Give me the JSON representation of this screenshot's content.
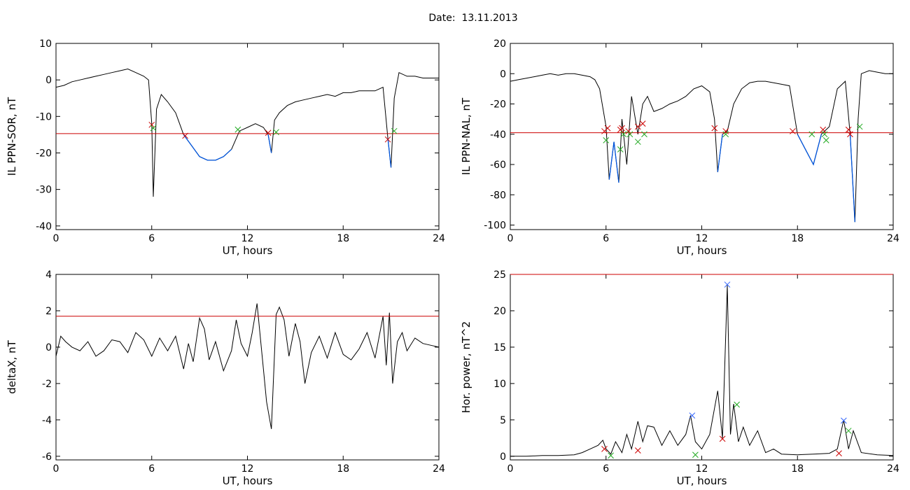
{
  "page": {
    "title": "Date:  13.11.2013"
  },
  "colors": {
    "trace": "#000000",
    "threshold": "#cc0000",
    "below_threshold": "#0055dd",
    "marker_start": "#cc0000",
    "marker_end": "#22aa22",
    "marker_peak": "#3366ff"
  },
  "chart_data": [
    {
      "type": "line",
      "xlabel": "UT, hours",
      "ylabel": "IL PPN-SOR, nT",
      "xlim": [
        0,
        24
      ],
      "ylim": [
        -41,
        10
      ],
      "xticks": [
        0,
        6,
        12,
        18,
        24
      ],
      "yticks": [
        -40,
        -30,
        -20,
        -10,
        0,
        10
      ],
      "threshold": -14.7,
      "grid": false,
      "x": [
        0,
        0.5,
        1,
        1.5,
        2,
        2.5,
        3,
        3.5,
        4,
        4.5,
        5,
        5.5,
        5.8,
        6,
        6.1,
        6.3,
        6.6,
        7,
        7.5,
        8,
        8.5,
        9,
        9.5,
        10,
        10.5,
        11,
        11.5,
        12,
        12.5,
        13,
        13.3,
        13.5,
        13.7,
        14,
        14.5,
        15,
        15.5,
        16,
        16.5,
        17,
        17.5,
        18,
        18.5,
        19,
        19.5,
        20,
        20.5,
        20.8,
        21,
        21.2,
        21.5,
        22,
        22.5,
        23,
        23.5,
        24
      ],
      "y": [
        -2,
        -1.5,
        -0.5,
        0,
        0.5,
        1,
        1.5,
        2,
        2.5,
        3,
        2,
        1,
        0,
        -12,
        -32,
        -8,
        -4,
        -6,
        -9,
        -15,
        -18,
        -21,
        -22,
        -22,
        -21,
        -19,
        -14,
        -13,
        -12,
        -13,
        -15,
        -20,
        -11,
        -9,
        -7,
        -6,
        -5.5,
        -5,
        -4.5,
        -4,
        -4.5,
        -3.5,
        -3.5,
        -3,
        -3,
        -3,
        -2,
        -16,
        -24,
        -5,
        2,
        1,
        1,
        0.5,
        0.5,
        0.5
      ],
      "markers": [
        {
          "x": 6.0,
          "y": -12.3,
          "kind": "start"
        },
        {
          "x": 6.1,
          "y": -13.2,
          "kind": "end"
        },
        {
          "x": 8.1,
          "y": -15.3,
          "kind": "start"
        },
        {
          "x": 11.4,
          "y": -13.6,
          "kind": "end"
        },
        {
          "x": 13.3,
          "y": -14.5,
          "kind": "start"
        },
        {
          "x": 13.8,
          "y": -14.3,
          "kind": "end"
        },
        {
          "x": 20.8,
          "y": -16.3,
          "kind": "start"
        },
        {
          "x": 21.2,
          "y": -14.0,
          "kind": "end"
        }
      ]
    },
    {
      "type": "line",
      "xlabel": "UT, hours",
      "ylabel": "IL PPN-NAL, nT",
      "xlim": [
        0,
        24
      ],
      "ylim": [
        -103,
        20
      ],
      "xticks": [
        0,
        6,
        12,
        18,
        24
      ],
      "yticks": [
        -100,
        -80,
        -60,
        -40,
        -20,
        0,
        20
      ],
      "threshold": -39,
      "grid": false,
      "x": [
        0,
        0.5,
        1,
        1.5,
        2,
        2.5,
        3,
        3.5,
        4,
        4.5,
        5,
        5.3,
        5.6,
        6,
        6.2,
        6.5,
        6.8,
        7,
        7.3,
        7.6,
        8,
        8.3,
        8.6,
        9,
        9.5,
        10,
        10.5,
        11,
        11.5,
        12,
        12.5,
        12.8,
        13,
        13.3,
        13.6,
        14,
        14.5,
        15,
        15.5,
        16,
        16.5,
        17,
        17.5,
        18,
        18.5,
        19,
        19.5,
        20,
        20.5,
        21,
        21.3,
        21.6,
        21.8,
        22,
        22.5,
        23,
        23.5,
        24
      ],
      "y": [
        -5,
        -4,
        -3,
        -2,
        -1,
        0,
        -1,
        0,
        0,
        -1,
        -2,
        -4,
        -10,
        -35,
        -70,
        -45,
        -72,
        -30,
        -60,
        -15,
        -40,
        -20,
        -15,
        -25,
        -23,
        -20,
        -18,
        -15,
        -10,
        -8,
        -12,
        -30,
        -65,
        -40,
        -38,
        -20,
        -10,
        -6,
        -5,
        -5,
        -6,
        -7,
        -8,
        -40,
        -50,
        -60,
        -40,
        -35,
        -10,
        -5,
        -40,
        -98,
        -30,
        0,
        2,
        1,
        0,
        0
      ],
      "markers": [
        {
          "x": 5.9,
          "y": -38,
          "kind": "start"
        },
        {
          "x": 6.1,
          "y": -36,
          "kind": "start"
        },
        {
          "x": 6.0,
          "y": -44,
          "kind": "end"
        },
        {
          "x": 6.9,
          "y": -37,
          "kind": "start"
        },
        {
          "x": 7.0,
          "y": -36,
          "kind": "start"
        },
        {
          "x": 6.9,
          "y": -50,
          "kind": "end"
        },
        {
          "x": 7.1,
          "y": -40,
          "kind": "end"
        },
        {
          "x": 7.4,
          "y": -38,
          "kind": "start"
        },
        {
          "x": 7.5,
          "y": -40,
          "kind": "end"
        },
        {
          "x": 8.0,
          "y": -35,
          "kind": "start"
        },
        {
          "x": 8.0,
          "y": -45,
          "kind": "end"
        },
        {
          "x": 8.3,
          "y": -33,
          "kind": "start"
        },
        {
          "x": 8.4,
          "y": -40,
          "kind": "end"
        },
        {
          "x": 12.8,
          "y": -36,
          "kind": "start"
        },
        {
          "x": 13.5,
          "y": -38,
          "kind": "start"
        },
        {
          "x": 13.5,
          "y": -40,
          "kind": "end"
        },
        {
          "x": 17.7,
          "y": -38,
          "kind": "start"
        },
        {
          "x": 18.9,
          "y": -40,
          "kind": "end"
        },
        {
          "x": 19.6,
          "y": -37,
          "kind": "start"
        },
        {
          "x": 19.7,
          "y": -40,
          "kind": "end"
        },
        {
          "x": 19.8,
          "y": -44,
          "kind": "end"
        },
        {
          "x": 21.2,
          "y": -37,
          "kind": "start"
        },
        {
          "x": 21.3,
          "y": -40,
          "kind": "start"
        },
        {
          "x": 21.9,
          "y": -35,
          "kind": "end"
        }
      ]
    },
    {
      "type": "line",
      "xlabel": "UT, hours",
      "ylabel": "deltaX, nT",
      "xlim": [
        0,
        24
      ],
      "ylim": [
        -6.2,
        4
      ],
      "xticks": [
        0,
        6,
        12,
        18,
        24
      ],
      "yticks": [
        -6,
        -4,
        -2,
        0,
        2,
        4
      ],
      "threshold": 1.7,
      "grid": false,
      "x": [
        0,
        0.3,
        0.6,
        1,
        1.5,
        2,
        2.5,
        3,
        3.5,
        4,
        4.5,
        5,
        5.5,
        6,
        6.5,
        7,
        7.5,
        8,
        8.3,
        8.6,
        9,
        9.3,
        9.6,
        10,
        10.5,
        11,
        11.3,
        11.6,
        12,
        12.3,
        12.6,
        13,
        13.2,
        13.5,
        13.8,
        14,
        14.3,
        14.6,
        15,
        15.3,
        15.6,
        16,
        16.5,
        17,
        17.5,
        18,
        18.5,
        19,
        19.5,
        20,
        20.5,
        20.7,
        20.9,
        21.1,
        21.4,
        21.7,
        22,
        22.5,
        23,
        23.5,
        24
      ],
      "y": [
        -0.5,
        0.6,
        0.3,
        0,
        -0.2,
        0.3,
        -0.5,
        -0.2,
        0.4,
        0.3,
        -0.3,
        0.8,
        0.4,
        -0.5,
        0.5,
        -0.2,
        0.6,
        -1.2,
        0.2,
        -0.8,
        1.6,
        1.0,
        -0.7,
        0.3,
        -1.3,
        -0.2,
        1.5,
        0.2,
        -0.5,
        0.8,
        2.4,
        -1.2,
        -3.0,
        -4.5,
        1.8,
        2.2,
        1.5,
        -0.5,
        1.3,
        0.3,
        -2.0,
        -0.3,
        0.6,
        -0.6,
        0.8,
        -0.4,
        -0.7,
        -0.1,
        0.8,
        -0.6,
        1.7,
        -1.0,
        1.9,
        -2.0,
        0.3,
        0.8,
        -0.2,
        0.5,
        0.2,
        0.1,
        0
      ]
    },
    {
      "type": "line",
      "xlabel": "UT, hours",
      "ylabel": "Hor. power, nT^2",
      "xlim": [
        0,
        24
      ],
      "ylim": [
        -0.5,
        25
      ],
      "xticks": [
        0,
        6,
        12,
        18,
        24
      ],
      "yticks": [
        0,
        5,
        10,
        15,
        20,
        25
      ],
      "threshold": 25,
      "grid": false,
      "x": [
        0,
        1,
        2,
        3,
        4,
        4.5,
        5,
        5.5,
        5.8,
        6,
        6.3,
        6.6,
        7,
        7.3,
        7.6,
        8,
        8.3,
        8.6,
        9,
        9.5,
        10,
        10.5,
        11,
        11.3,
        11.6,
        12,
        12.5,
        13,
        13.3,
        13.6,
        13.8,
        14,
        14.3,
        14.6,
        15,
        15.5,
        16,
        16.5,
        17,
        18,
        19,
        20,
        20.5,
        20.9,
        21.2,
        21.5,
        22,
        23,
        24
      ],
      "y": [
        0,
        0,
        0.1,
        0.1,
        0.2,
        0.5,
        1,
        1.5,
        2.2,
        1,
        0.3,
        2,
        0.5,
        3,
        1,
        4.8,
        2,
        4.2,
        4,
        1.5,
        3.5,
        1.5,
        3,
        5.6,
        2,
        1,
        3,
        9,
        2.5,
        23.5,
        3,
        7.2,
        2,
        4,
        1.5,
        3.5,
        0.5,
        1,
        0.3,
        0.2,
        0.3,
        0.4,
        1,
        5,
        1,
        3.5,
        0.5,
        0.2,
        0.1
      ],
      "markers": [
        {
          "x": 5.9,
          "y": 1.0,
          "kind": "start"
        },
        {
          "x": 6.3,
          "y": 0.1,
          "kind": "end"
        },
        {
          "x": 8.0,
          "y": 0.8,
          "kind": "start"
        },
        {
          "x": 11.4,
          "y": 5.6,
          "kind": "peak"
        },
        {
          "x": 11.6,
          "y": 0.2,
          "kind": "end"
        },
        {
          "x": 13.3,
          "y": 2.4,
          "kind": "start"
        },
        {
          "x": 13.6,
          "y": 23.6,
          "kind": "peak"
        },
        {
          "x": 14.2,
          "y": 7.1,
          "kind": "end"
        },
        {
          "x": 20.6,
          "y": 0.4,
          "kind": "start"
        },
        {
          "x": 20.9,
          "y": 4.9,
          "kind": "peak"
        },
        {
          "x": 21.2,
          "y": 3.5,
          "kind": "end"
        }
      ]
    }
  ]
}
